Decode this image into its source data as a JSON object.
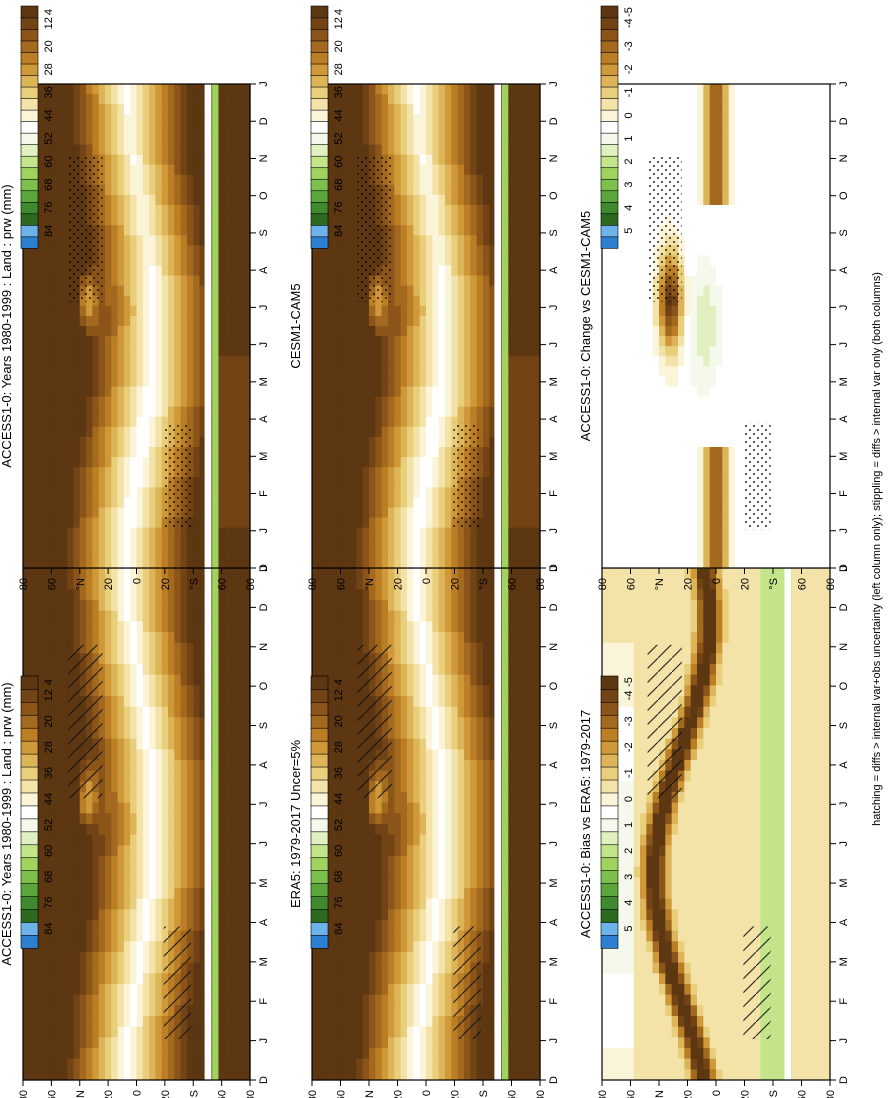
{
  "figure": {
    "footnote": "hatching = diffs > internal var+obs uncertainty (left column only); stippling = diffs > internal var only (both columns)"
  },
  "chart_data": [
    {
      "id": "p1",
      "type": "heatmap",
      "title": "ACCESS1-0: Years 1980-1999 : Land : prw (mm)",
      "x_ticks": [
        "D",
        "J",
        "F",
        "M",
        "A",
        "M",
        "J",
        "J",
        "A",
        "S",
        "O",
        "N",
        "D",
        "J"
      ],
      "y_ticks": [
        "80",
        "60",
        "°N",
        "20",
        "0",
        "20",
        "°S",
        "60",
        "80"
      ],
      "colorbar": "abs",
      "hatch": "hatch"
    },
    {
      "id": "p2",
      "type": "heatmap",
      "title": "ACCESS1-0: Years 1980-1999 : Land : prw (mm)",
      "x_ticks": [
        "D",
        "J",
        "F",
        "M",
        "A",
        "M",
        "J",
        "J",
        "A",
        "S",
        "O",
        "N",
        "D",
        "J"
      ],
      "y_ticks": [
        "80",
        "60",
        "°N",
        "20",
        "0",
        "20",
        "°S",
        "60",
        "80"
      ],
      "colorbar": "abs",
      "hatch": "stipple"
    },
    {
      "id": "p3",
      "type": "heatmap",
      "title": "ERA5: 1979-2017 Uncer=5%",
      "x_ticks": [
        "D",
        "J",
        "F",
        "M",
        "A",
        "M",
        "J",
        "J",
        "A",
        "S",
        "O",
        "N",
        "D",
        "J"
      ],
      "y_ticks": [
        "80",
        "60",
        "°N",
        "20",
        "0",
        "20",
        "°S",
        "60",
        "80"
      ],
      "colorbar": "abs",
      "hatch": "hatch"
    },
    {
      "id": "p4",
      "type": "heatmap",
      "title": "CESM1-CAM5",
      "x_ticks": [
        "D",
        "J",
        "F",
        "M",
        "A",
        "M",
        "J",
        "J",
        "A",
        "S",
        "O",
        "N",
        "D",
        "J"
      ],
      "y_ticks": [
        "80",
        "60",
        "°N",
        "20",
        "0",
        "20",
        "°S",
        "60",
        "80"
      ],
      "colorbar": "abs",
      "hatch": "stipple"
    },
    {
      "id": "p5",
      "type": "heatmap",
      "title": "ACCESS1-0: Bias vs ERA5: 1979-2017",
      "x_ticks": [
        "D",
        "J",
        "F",
        "M",
        "A",
        "M",
        "J",
        "J",
        "A",
        "S",
        "O",
        "N",
        "D",
        "J"
      ],
      "y_ticks": [
        "80",
        "60",
        "°N",
        "20",
        "0",
        "20",
        "°S",
        "60",
        "80"
      ],
      "colorbar": "diff",
      "hatch": "hatch"
    },
    {
      "id": "p6",
      "type": "heatmap",
      "title": "ACCESS1-0: Change vs CESM1-CAM5",
      "x_ticks": [
        "D",
        "J",
        "F",
        "M",
        "A",
        "M",
        "J",
        "J",
        "A",
        "S",
        "O",
        "N",
        "D",
        "J"
      ],
      "y_ticks": [
        "80",
        "60",
        "°N",
        "20",
        "0",
        "20",
        "°S",
        "60",
        "80"
      ],
      "colorbar": "diff",
      "hatch": "stipple"
    }
  ],
  "colorbars": {
    "abs": {
      "labels": [
        "84",
        "76",
        "68",
        "60",
        "52",
        "44",
        "36",
        "28",
        "20",
        "12",
        "4"
      ],
      "colors": [
        "#2d7fd0",
        "#6db2e8",
        "#2b6a1f",
        "#3f8a2e",
        "#5ba63c",
        "#7cbf4d",
        "#9fd35e",
        "#c3e488",
        "#e2f0c1",
        "#f4f9ec",
        "#ffffff",
        "#faf4d8",
        "#f3e3a9",
        "#e9cf7c",
        "#ddb457",
        "#cf9838",
        "#bb7e25",
        "#a3691e",
        "#8b5418",
        "#714315",
        "#5c3712"
      ]
    },
    "diff": {
      "labels": [
        "5",
        "4",
        "3",
        "2",
        "1",
        "0",
        "-1",
        "-2",
        "-3",
        "-4",
        "-5"
      ],
      "colors": [
        "#2d7fd0",
        "#6db2e8",
        "#2b6a1f",
        "#3f8a2e",
        "#5ba63c",
        "#7cbf4d",
        "#9fd35e",
        "#c3e488",
        "#e2f0c1",
        "#f4f9ec",
        "#ffffff",
        "#faf4d8",
        "#f3e3a9",
        "#e9cf7c",
        "#ddb457",
        "#cf9838",
        "#bb7e25",
        "#a3691e",
        "#8b5418",
        "#714315",
        "#5c3712"
      ]
    }
  }
}
